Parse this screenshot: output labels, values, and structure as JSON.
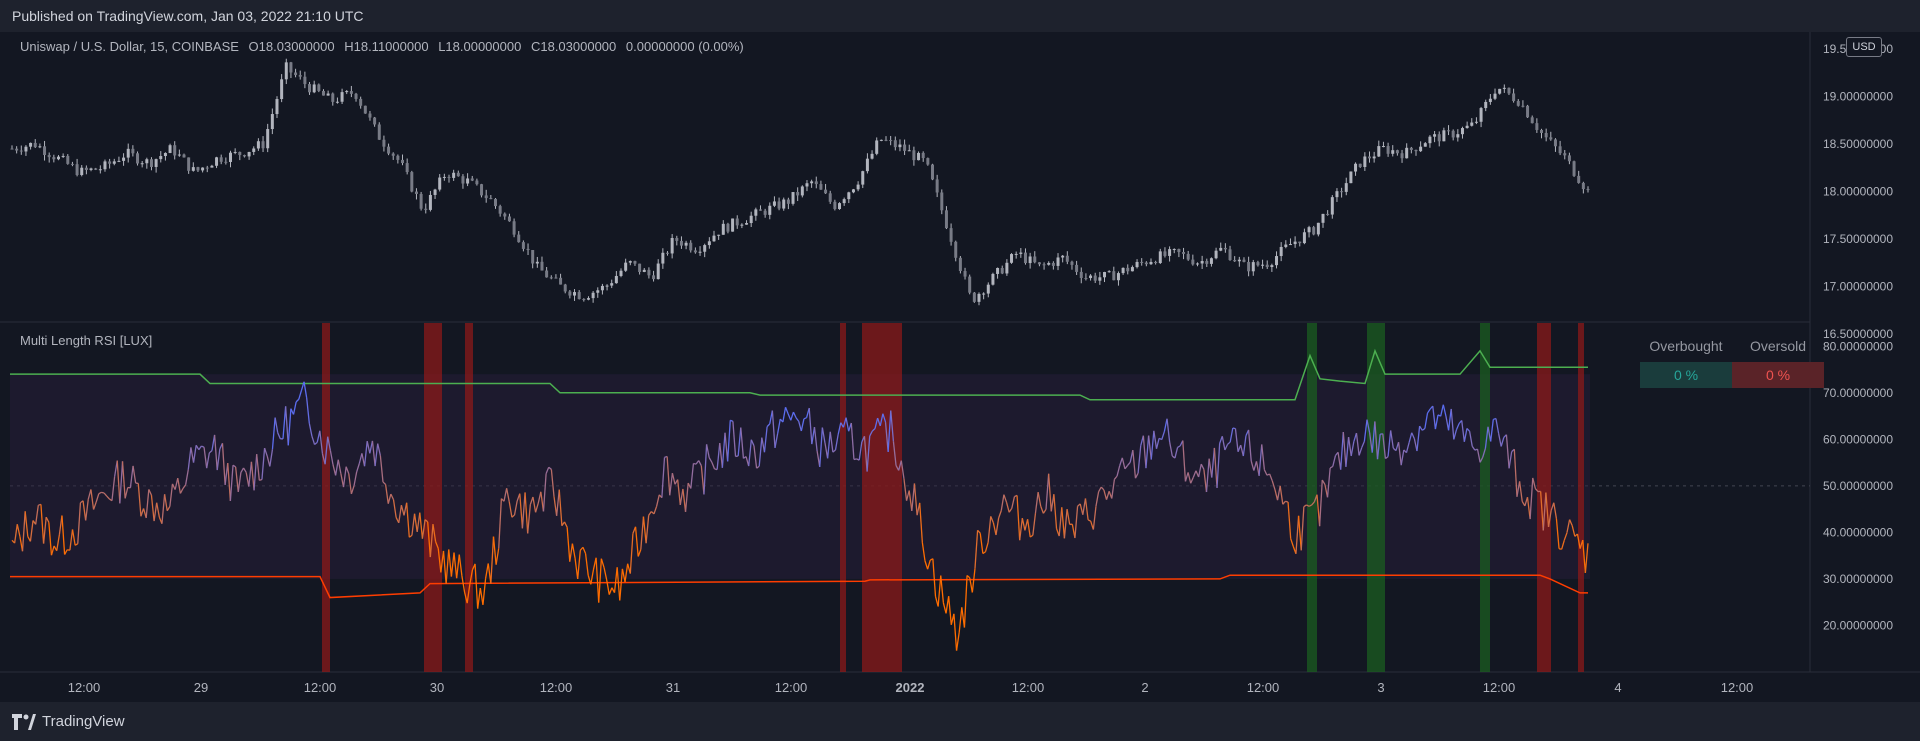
{
  "header": {
    "published": "Published on TradingView.com, Jan 03, 2022 21:10 UTC"
  },
  "legend": {
    "symbol": "Uniswap / U.S. Dollar, 15, COINBASE",
    "o_label": "O",
    "o_value": "18.03000000",
    "h_label": "H",
    "h_value": "18.11000000",
    "l_label": "L",
    "l_value": "18.00000000",
    "c_label": "C",
    "c_value": "18.03000000",
    "change": "0.00000000 (0.00%)"
  },
  "indicator": {
    "title": "Multi Length RSI [LUX]"
  },
  "currency_badge": "USD",
  "ob_table": {
    "overbought_label": "Overbought",
    "oversold_label": "Oversold",
    "overbought_value": "0 %",
    "oversold_value": "0 %",
    "overbought_color": "#1a3c3c",
    "oversold_color": "#5a2328"
  },
  "footer": {
    "brand": "TradingView"
  },
  "colors": {
    "candle_up": "#b2b5be",
    "candle_down": "#b2b5be",
    "upper_band": "#4caf50",
    "lower_band": "#ff3d00",
    "rsi_high": "#5b6df0",
    "rsi_low": "#ff6d00",
    "ob_zone": "#1b5e20",
    "os_zone": "#8b1a1a"
  },
  "chart_data": [
    {
      "type": "candlestick",
      "title": "Uniswap / U.S. Dollar, 15, COINBASE",
      "ylim": [
        16.5,
        19.55
      ],
      "y_ticks": [
        "19.50000000",
        "19.00000000",
        "18.50000000",
        "18.00000000",
        "17.50000000",
        "17.00000000",
        "16.50000000"
      ],
      "x_ticks": [
        "12:00",
        "29",
        "12:00",
        "30",
        "12:00",
        "31",
        "12:00",
        "2022",
        "12:00",
        "2",
        "12:00",
        "3",
        "12:00",
        "4",
        "12:00"
      ],
      "close_path": [
        18.45,
        18.5,
        18.35,
        18.2,
        18.25,
        18.4,
        18.3,
        18.45,
        18.2,
        18.35,
        18.4,
        18.5,
        19.3,
        19.1,
        18.95,
        19.05,
        18.6,
        18.3,
        17.8,
        18.2,
        18.1,
        17.9,
        17.6,
        17.2,
        17.0,
        16.9,
        17.0,
        17.25,
        17.1,
        17.5,
        17.4,
        17.6,
        17.7,
        17.8,
        17.9,
        18.1,
        17.85,
        18.1,
        18.55,
        18.45,
        18.3,
        17.6,
        16.85,
        17.1,
        17.35,
        17.2,
        17.3,
        17.1,
        17.1,
        17.2,
        17.3,
        17.35,
        17.25,
        17.4,
        17.2,
        17.25,
        17.45,
        17.6,
        17.95,
        18.3,
        18.45,
        18.4,
        18.55,
        18.6,
        18.7,
        19.1,
        18.95,
        18.6,
        18.35,
        18.0
      ]
    },
    {
      "type": "line",
      "title": "Multi Length RSI [LUX]",
      "ylim": [
        10,
        85
      ],
      "y_ticks": [
        "80.00000000",
        "70.00000000",
        "60.00000000",
        "50.00000000",
        "40.00000000",
        "30.00000000",
        "20.00000000"
      ],
      "series": [],
      "rsi_path": [
        36,
        44,
        38,
        42,
        48,
        52,
        47,
        45,
        55,
        58,
        49,
        55,
        62,
        68,
        58,
        52,
        60,
        47,
        42,
        35,
        30,
        27,
        48,
        44,
        50,
        35,
        30,
        28,
        40,
        54,
        48,
        55,
        60,
        57,
        63,
        65,
        58,
        60,
        58,
        62,
        48,
        30,
        18,
        38,
        46,
        42,
        48,
        40,
        45,
        50,
        55,
        62,
        55,
        50,
        58,
        57,
        52,
        40,
        44,
        56,
        62,
        58,
        60,
        65,
        62,
        58,
        62,
        50,
        45,
        40,
        35
      ]
    }
  ]
}
